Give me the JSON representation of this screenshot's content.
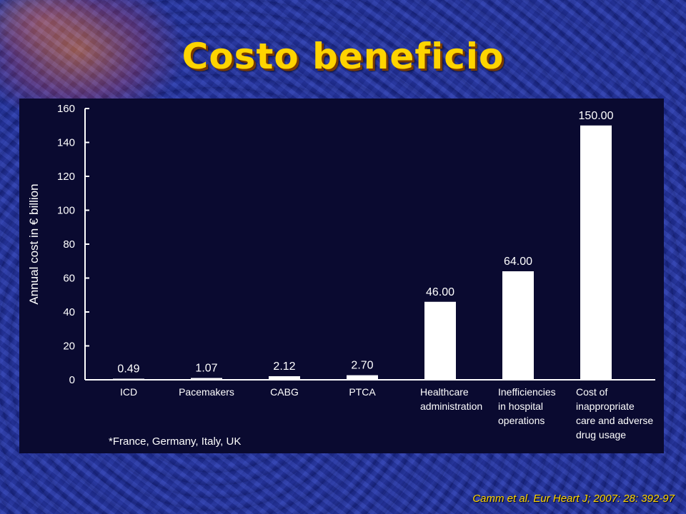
{
  "slide": {
    "title": "Costo beneficio",
    "footnote": "*France, Germany, Italy, UK",
    "citation": "Camm et al. Eur Heart J; 2007: 28: 392-97"
  },
  "chart_data": {
    "type": "bar",
    "ylabel": "Annual cost in € billion",
    "ylim": [
      0,
      160
    ],
    "yticks": [
      0,
      20,
      40,
      60,
      80,
      100,
      120,
      140,
      160
    ],
    "grid": false,
    "categories": [
      [
        "ICD"
      ],
      [
        "Pacemakers"
      ],
      [
        "CABG"
      ],
      [
        "PTCA"
      ],
      [
        "Healthcare",
        "administration"
      ],
      [
        "Inefficiencies",
        "in hospital",
        "operations"
      ],
      [
        "Cost of",
        "inappropriate",
        "care and adverse",
        "drug usage"
      ]
    ],
    "values": [
      0.49,
      1.07,
      2.12,
      2.7,
      46.0,
      64.0,
      150.0
    ],
    "data_labels": [
      "0.49",
      "1.07",
      "2.12",
      "2.70",
      "46.00",
      "64.00",
      "150.00"
    ],
    "bar_color": "#ffffff",
    "text_color": "#ffffff"
  }
}
